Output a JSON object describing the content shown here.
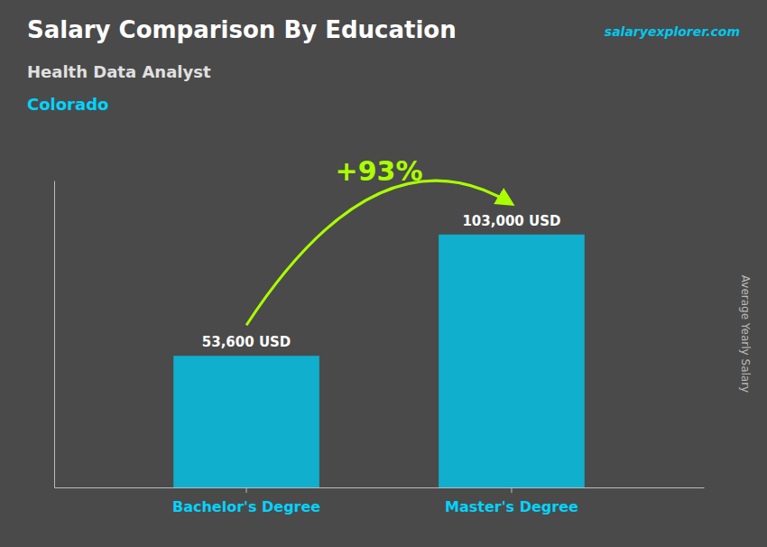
{
  "chart_data": {
    "type": "bar",
    "title": "Salary Comparison By Education",
    "subtitle": "Health Data Analyst",
    "ylabel": "Average Yearly Salary",
    "annotations": [
      "Colorado",
      "+93%",
      "salaryexplorer.com"
    ],
    "categories": [
      "Bachelor's Degree",
      "Master's Degree"
    ],
    "values": [
      53600,
      103000
    ],
    "value_labels": [
      "53,600 USD",
      "103,000 USD"
    ],
    "data_labels": true,
    "color": "#00c8ee",
    "ylim": [
      0,
      125000
    ],
    "tick_labels": "x"
  }
}
